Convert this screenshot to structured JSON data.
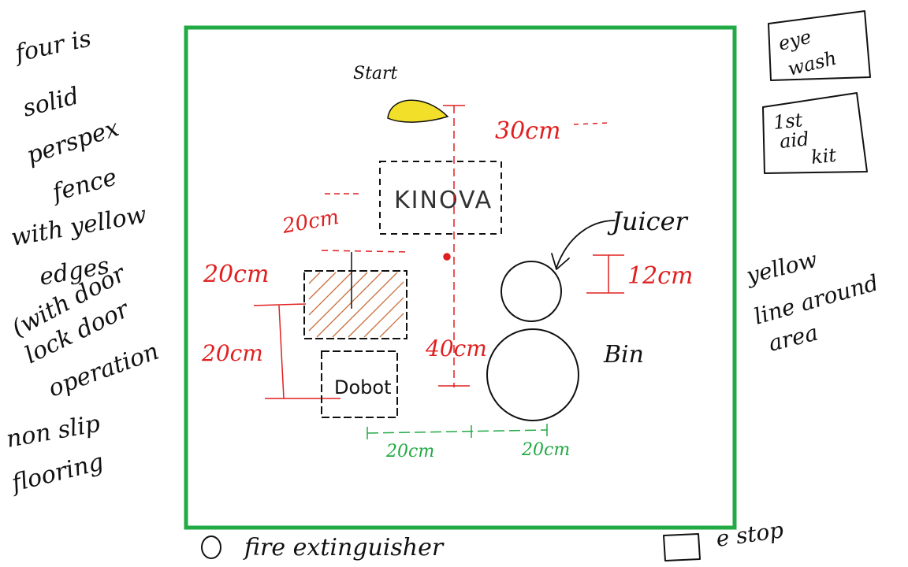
{
  "colors": {
    "boundary": "#22aa44",
    "dimension_red": "#e02020",
    "dimension_green": "#22aa44",
    "ink": "#111111",
    "yellow": "#f2df2a",
    "hatch_brown": "#c87040"
  },
  "left_notes": {
    "lines": [
      "four is",
      "solid",
      "perspex",
      "fence",
      "with yellow",
      "edges",
      "(with door",
      "lock door",
      "operation",
      "non slip",
      "flooring"
    ]
  },
  "right_notes": {
    "eye_wash": [
      "eye",
      "wash"
    ],
    "first_aid": [
      "1st",
      "aid",
      "kit"
    ],
    "yellow_line": [
      "yellow",
      "line around",
      "area"
    ]
  },
  "layout_labels": {
    "start": "Start",
    "kinova": "KINOVA",
    "juicer": "Juicer",
    "bin": "Bin",
    "dobot": "Dobot"
  },
  "dimensions": {
    "d30": "30cm",
    "d20_kinova": "20cm",
    "d20_table_top": "20cm",
    "d20_table_side": "20cm",
    "d40": "40cm",
    "d12_juicer": "12cm",
    "d20_green_left": "20cm",
    "d20_green_right": "20cm"
  },
  "legend": {
    "fire": "fire extinguisher",
    "estop": "e stop"
  }
}
